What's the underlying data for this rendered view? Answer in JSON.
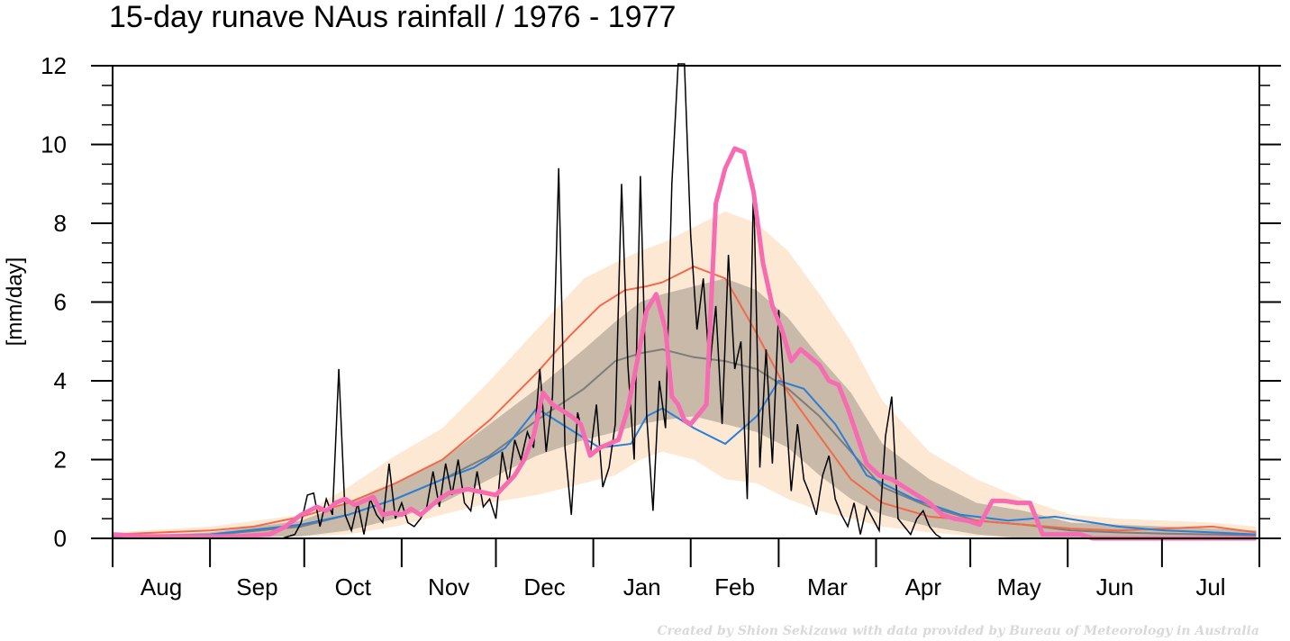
{
  "chart_data": {
    "type": "line",
    "title": "15-day runave NAus rainfall  /  1976 - 1977",
    "ylabel": "[mm/day]",
    "xlabel": "",
    "ylim": [
      0,
      12
    ],
    "y_ticks": [
      0,
      2,
      4,
      6,
      8,
      10,
      12
    ],
    "x_unit": "day of season (Aug 1 = 0)",
    "months": [
      "Aug",
      "Sep",
      "Oct",
      "Nov",
      "Dec",
      "Jan",
      "Feb",
      "Mar",
      "Apr",
      "May",
      "Jun",
      "Jul"
    ],
    "credit": "Created by Shion Sekizawa with data provided by Bureau of Meteorology in Australia",
    "colors": {
      "outer_band": "#fde8d4",
      "inner_band": "#c8b9a8",
      "median_line": "#7d7d7d",
      "mean_line": "#f26a4a",
      "blue_line": "#2a7fd8",
      "daily_line": "#000000",
      "runave_line": "#f66bb2"
    },
    "series": [
      {
        "role": "outer_band_upper",
        "x": [
          0,
          31,
          60,
          75,
          90,
          105,
          120,
          135,
          150,
          160,
          168,
          175,
          185,
          195,
          205,
          215,
          225,
          235,
          245,
          260,
          275,
          290,
          305,
          320,
          335,
          350,
          364
        ],
        "values": [
          0.15,
          0.3,
          0.6,
          1.3,
          2.1,
          2.8,
          4.0,
          5.3,
          6.6,
          7.0,
          7.3,
          7.5,
          7.9,
          8.3,
          8.0,
          7.3,
          6.2,
          5.0,
          3.5,
          2.2,
          1.5,
          1.0,
          0.6,
          0.5,
          0.45,
          0.4,
          0.3
        ]
      },
      {
        "role": "outer_band_lower",
        "x": [
          0,
          31,
          60,
          75,
          90,
          105,
          120,
          135,
          150,
          160,
          168,
          175,
          185,
          195,
          205,
          215,
          225,
          235,
          245,
          260,
          275,
          290,
          305,
          320,
          335,
          350,
          364
        ],
        "values": [
          0,
          0,
          0.05,
          0.1,
          0.3,
          0.6,
          0.9,
          1.1,
          1.4,
          1.6,
          2.0,
          2.2,
          2.0,
          1.5,
          1.4,
          1.0,
          0.7,
          0.5,
          0.3,
          0.15,
          0.05,
          0,
          0,
          0,
          0,
          0,
          0
        ]
      },
      {
        "role": "inner_band_upper",
        "x": [
          0,
          31,
          60,
          75,
          90,
          105,
          120,
          135,
          150,
          160,
          168,
          175,
          185,
          195,
          205,
          215,
          225,
          235,
          245,
          260,
          275,
          290,
          305,
          320,
          335,
          350,
          364
        ],
        "values": [
          0.05,
          0.15,
          0.45,
          0.9,
          1.4,
          2.0,
          2.9,
          3.8,
          4.8,
          5.5,
          6.0,
          6.2,
          6.4,
          6.6,
          6.3,
          5.6,
          4.6,
          3.7,
          2.4,
          1.5,
          0.9,
          0.7,
          0.4,
          0.35,
          0.3,
          0.25,
          0.2
        ]
      },
      {
        "role": "inner_band_lower",
        "x": [
          0,
          31,
          60,
          75,
          90,
          105,
          120,
          135,
          150,
          160,
          168,
          175,
          185,
          195,
          205,
          215,
          225,
          235,
          245,
          260,
          275,
          290,
          305,
          320,
          335,
          350,
          364
        ],
        "values": [
          0,
          0,
          0.05,
          0.2,
          0.5,
          0.9,
          1.5,
          2.1,
          2.5,
          2.7,
          2.9,
          3.0,
          3.1,
          2.9,
          2.7,
          2.3,
          1.6,
          1.0,
          0.6,
          0.3,
          0.1,
          0,
          0,
          0,
          0,
          0,
          0
        ]
      },
      {
        "name": "",
        "role": "median",
        "x": [
          0,
          31,
          60,
          75,
          90,
          105,
          120,
          135,
          150,
          160,
          168,
          175,
          185,
          195,
          205,
          215,
          225,
          235,
          245,
          260,
          275,
          290,
          305,
          320,
          335,
          350,
          364
        ],
        "values": [
          0.02,
          0.08,
          0.3,
          0.6,
          1.0,
          1.5,
          2.1,
          3.0,
          3.8,
          4.5,
          4.7,
          4.8,
          4.6,
          4.5,
          4.3,
          3.8,
          3.1,
          2.2,
          1.3,
          0.8,
          0.45,
          0.35,
          0.2,
          0.15,
          0.12,
          0.1,
          0.08
        ]
      },
      {
        "name": "",
        "role": "mean",
        "x": [
          0,
          31,
          45,
          60,
          75,
          90,
          105,
          120,
          135,
          145,
          155,
          163,
          170,
          175,
          185,
          195,
          205,
          215,
          225,
          235,
          245,
          260,
          275,
          290,
          305,
          320,
          335,
          350,
          364
        ],
        "values": [
          0.1,
          0.2,
          0.3,
          0.55,
          0.9,
          1.4,
          2.0,
          3.0,
          4.2,
          5.1,
          5.9,
          6.3,
          6.4,
          6.5,
          6.9,
          6.6,
          5.2,
          3.7,
          2.6,
          1.5,
          0.9,
          0.55,
          0.45,
          0.35,
          0.25,
          0.2,
          0.25,
          0.3,
          0.15
        ]
      },
      {
        "name": "",
        "role": "blue",
        "x": [
          0,
          31,
          60,
          75,
          90,
          105,
          115,
          125,
          135,
          145,
          155,
          165,
          170,
          175,
          185,
          195,
          205,
          212,
          220,
          230,
          240,
          255,
          270,
          285,
          300,
          320,
          335,
          350,
          364
        ],
        "values": [
          0.05,
          0.1,
          0.35,
          0.6,
          1.0,
          1.5,
          1.8,
          2.3,
          3.3,
          2.8,
          2.3,
          2.4,
          3.1,
          3.3,
          2.8,
          2.4,
          3.1,
          4.0,
          3.8,
          2.9,
          1.6,
          1.0,
          0.6,
          0.45,
          0.55,
          0.3,
          0.2,
          0.15,
          0.1
        ]
      },
      {
        "name": "",
        "role": "daily",
        "x": [
          0,
          10,
          20,
          30,
          40,
          50,
          54,
          58,
          60,
          62,
          64,
          66,
          68,
          70,
          72,
          74,
          76,
          78,
          80,
          82,
          84,
          86,
          88,
          90,
          92,
          94,
          96,
          98,
          100,
          102,
          104,
          106,
          108,
          110,
          112,
          114,
          116,
          118,
          120,
          122,
          124,
          126,
          128,
          130,
          132,
          134,
          136,
          138,
          140,
          142,
          144,
          146,
          148,
          150,
          152,
          154,
          156,
          158,
          160,
          162,
          164,
          166,
          168,
          170,
          172,
          174,
          176,
          178,
          180,
          182,
          184,
          186,
          188,
          190,
          192,
          194,
          196,
          198,
          200,
          202,
          204,
          206,
          208,
          210,
          212,
          214,
          216,
          218,
          220,
          222,
          224,
          226,
          228,
          230,
          232,
          234,
          236,
          238,
          240,
          242,
          244,
          246,
          248,
          250,
          252,
          254,
          256,
          258,
          260,
          262,
          264,
          266,
          268,
          270,
          272,
          274,
          276,
          278,
          280,
          282,
          284,
          286,
          288,
          290,
          292,
          294,
          296,
          298,
          300,
          302,
          304,
          306,
          308,
          310,
          320,
          330,
          340,
          350,
          364
        ],
        "values": [
          0.1,
          0.05,
          0,
          0,
          0,
          0,
          0,
          0.1,
          0.4,
          1.1,
          1.15,
          0.3,
          1.0,
          0.6,
          4.3,
          0.6,
          0.2,
          0.9,
          0.1,
          1.0,
          0.6,
          0.4,
          1.9,
          0.5,
          0.9,
          0.4,
          0.3,
          0.5,
          0.8,
          1.7,
          0.8,
          1.9,
          1.1,
          2.0,
          0.9,
          0.7,
          1.7,
          0.8,
          1.0,
          0.5,
          2.2,
          1.4,
          2.5,
          2.0,
          2.7,
          2.3,
          4.3,
          2.2,
          3.6,
          9.4,
          2.3,
          0.6,
          3.2,
          2.5,
          2.1,
          3.4,
          1.3,
          1.8,
          2.9,
          9.0,
          4.4,
          2.0,
          9.2,
          3.1,
          0.7,
          4.0,
          2.8,
          9.0,
          12.5,
          12.5,
          7.7,
          5.3,
          6.6,
          4.3,
          5.9,
          2.9,
          7.2,
          4.3,
          5.0,
          1.0,
          9.0,
          1.8,
          4.8,
          1.9,
          5.8,
          3.6,
          1.2,
          2.9,
          1.5,
          1.1,
          0.6,
          1.6,
          2.1,
          1.0,
          0.6,
          0.3,
          0.9,
          0.1,
          0.8,
          0.5,
          0.2,
          2.6,
          3.6,
          0.5,
          0.3,
          0.1,
          0.5,
          0.7,
          0.3,
          0.1,
          0,
          0,
          0,
          0,
          0,
          0,
          0,
          0,
          0,
          0,
          0,
          0,
          0,
          0,
          0,
          0,
          0,
          0,
          0,
          0,
          0,
          0,
          0,
          0,
          0,
          0,
          0,
          0,
          0
        ]
      },
      {
        "name": "",
        "role": "runave",
        "x": [
          0,
          10,
          20,
          30,
          40,
          50,
          55,
          60,
          65,
          68,
          71,
          74,
          77,
          80,
          83,
          86,
          89,
          92,
          95,
          98,
          101,
          104,
          107,
          110,
          113,
          116,
          119,
          122,
          125,
          128,
          131,
          134,
          137,
          140,
          143,
          146,
          149,
          152,
          155,
          158,
          161,
          164,
          167,
          170,
          173,
          176,
          178,
          180,
          182,
          184,
          186,
          189,
          192,
          195,
          198,
          201,
          204,
          207,
          210,
          213,
          216,
          219,
          222,
          225,
          228,
          231,
          234,
          237,
          240,
          244,
          248,
          252,
          256,
          260,
          264,
          268,
          272,
          276,
          280,
          284,
          288,
          292,
          296,
          300,
          304,
          308,
          312,
          320,
          330,
          340,
          350,
          364
        ],
        "values": [
          0.1,
          0.05,
          0.05,
          0.05,
          0.05,
          0.1,
          0.3,
          0.6,
          0.8,
          0.7,
          0.9,
          1.0,
          0.85,
          0.95,
          1.05,
          0.6,
          0.65,
          0.6,
          0.75,
          0.6,
          0.8,
          1.0,
          1.15,
          1.2,
          1.25,
          1.2,
          1.15,
          1.1,
          1.35,
          1.6,
          2.0,
          2.6,
          3.7,
          3.4,
          3.25,
          3.1,
          2.9,
          2.1,
          2.3,
          2.4,
          2.5,
          3.3,
          4.5,
          5.8,
          6.2,
          5.3,
          3.6,
          3.4,
          3.0,
          2.9,
          3.1,
          3.4,
          8.5,
          9.4,
          9.9,
          9.8,
          8.8,
          7.0,
          5.9,
          5.3,
          4.5,
          4.8,
          4.6,
          4.4,
          4.0,
          3.9,
          3.3,
          2.6,
          1.9,
          1.6,
          1.5,
          1.3,
          1.1,
          0.9,
          0.6,
          0.5,
          0.45,
          0.35,
          0.95,
          0.95,
          0.9,
          0.9,
          0.1,
          0.1,
          0.1,
          0.1,
          0,
          0,
          0,
          0,
          0,
          0
        ]
      }
    ]
  }
}
